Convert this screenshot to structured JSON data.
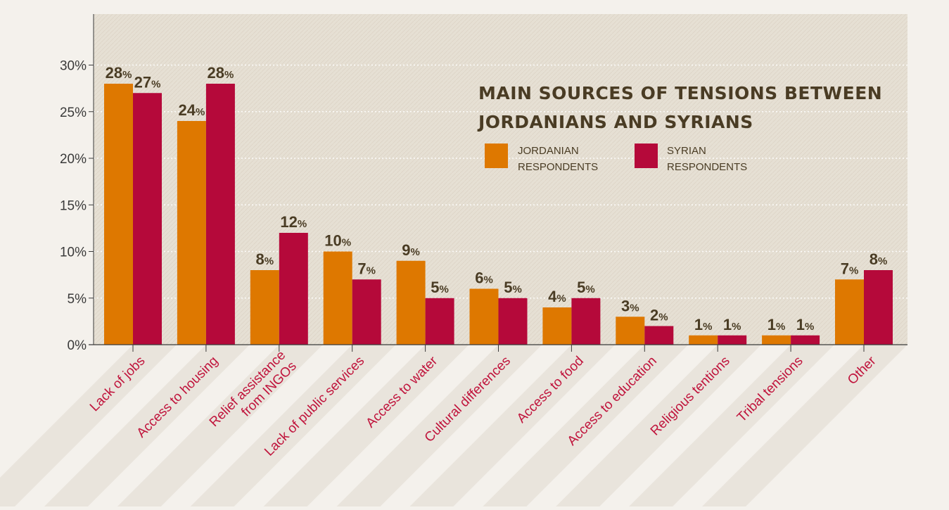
{
  "chart_data": {
    "type": "bar",
    "title_lines": [
      "MAIN SOURCES OF TENSIONS BETWEEN",
      "JORDANIANS AND SYRIANS"
    ],
    "categories": [
      "Lack of jobs",
      "Access to housing",
      "Relief assistance from INGOs",
      "Lack of public services",
      "Access to water",
      "Cultural differences",
      "Access to food",
      "Access to education",
      "Religious tentions",
      "Tribal tensions",
      "Other"
    ],
    "series": [
      {
        "name": "JORDANIAN RESPONDENTS",
        "legend_lines": [
          "JORDANIAN",
          "RESPONDENTS"
        ],
        "color": "#de7800",
        "values": [
          28,
          24,
          8,
          10,
          9,
          6,
          4,
          3,
          1,
          1,
          7
        ],
        "labels": [
          "28",
          "24",
          "8",
          "10",
          "9",
          "6",
          "4",
          "3",
          "1",
          "1",
          "7"
        ]
      },
      {
        "name": "SYRIAN RESPONDENTS",
        "legend_lines": [
          "SYRIAN",
          "RESPONDENTS"
        ],
        "color": "#b5093a",
        "values": [
          27,
          28,
          12,
          7,
          5,
          5,
          5,
          2,
          1,
          1,
          8
        ],
        "labels": [
          "27",
          "28",
          "12",
          "7",
          "5",
          "5",
          "5",
          "2",
          "1",
          "1",
          "8"
        ]
      }
    ],
    "value_suffix": "%",
    "yticks": [
      "0%",
      "5%",
      "10%",
      "15%",
      "20%",
      "25%",
      "30%"
    ],
    "ylim": [
      0,
      30
    ],
    "grid": true,
    "legend_position": "top-right"
  }
}
